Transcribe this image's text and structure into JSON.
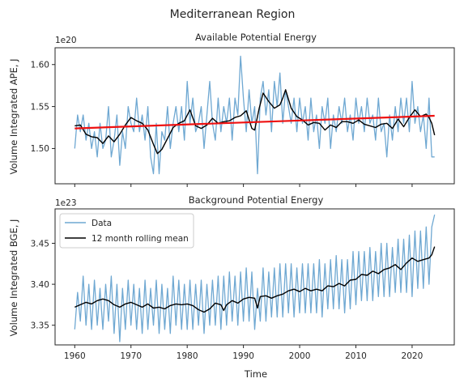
{
  "figure": {
    "suptitle": "Mediterranean Region"
  },
  "chart_data": [
    {
      "type": "line",
      "title": "Available Potential Energy",
      "xlabel": "",
      "ylabel": "Volume Integrated APE, J",
      "offset_label": "1e20",
      "xlim": [
        1956.5,
        2027.5
      ],
      "ylim": [
        1.458,
        1.62
      ],
      "xticks": [
        1960,
        1970,
        1980,
        1990,
        2000,
        2010,
        2020
      ],
      "show_xticklabels": false,
      "yticks": [
        1.5,
        1.55,
        1.6
      ],
      "ytick_labels": [
        "1.50",
        "1.55",
        "1.60"
      ],
      "grid": false,
      "legend": "none",
      "colors": {
        "data": "#6fa8d2",
        "rolling": "#000000",
        "trend": "#ee1111"
      },
      "series": [
        {
          "kind": "monthly",
          "x": [
            1960.0,
            1960.5,
            1961.0,
            1961.5,
            1962.0,
            1962.5,
            1963.0,
            1963.5,
            1964.0,
            1964.5,
            1965.0,
            1965.5,
            1966.0,
            1966.5,
            1967.0,
            1967.5,
            1968.0,
            1968.5,
            1969.0,
            1969.5,
            1970.0,
            1970.5,
            1971.0,
            1971.5,
            1972.0,
            1972.5,
            1973.0,
            1973.5,
            1974.0,
            1974.5,
            1975.0,
            1975.5,
            1976.0,
            1976.5,
            1977.0,
            1977.5,
            1978.0,
            1978.5,
            1979.0,
            1979.5,
            1980.0,
            1980.5,
            1981.0,
            1981.5,
            1982.0,
            1982.5,
            1983.0,
            1983.5,
            1984.0,
            1984.5,
            1985.0,
            1985.5,
            1986.0,
            1986.5,
            1987.0,
            1987.5,
            1988.0,
            1988.5,
            1989.0,
            1989.5,
            1990.0,
            1990.5,
            1991.0,
            1991.5,
            1992.0,
            1992.5,
            1993.0,
            1993.5,
            1994.0,
            1994.5,
            1995.0,
            1995.5,
            1996.0,
            1996.5,
            1997.0,
            1997.5,
            1998.0,
            1998.5,
            1999.0,
            1999.5,
            2000.0,
            2000.5,
            2001.0,
            2001.5,
            2002.0,
            2002.5,
            2003.0,
            2003.5,
            2004.0,
            2004.5,
            2005.0,
            2005.5,
            2006.0,
            2006.5,
            2007.0,
            2007.5,
            2008.0,
            2008.5,
            2009.0,
            2009.5,
            2010.0,
            2010.5,
            2011.0,
            2011.5,
            2012.0,
            2012.5,
            2013.0,
            2013.5,
            2014.0,
            2014.5,
            2015.0,
            2015.5,
            2016.0,
            2016.5,
            2017.0,
            2017.5,
            2018.0,
            2018.5,
            2019.0,
            2019.5,
            2020.0,
            2020.5,
            2021.0,
            2021.5,
            2022.0,
            2022.5,
            2023.0,
            2023.5,
            2024.0
          ],
          "values": [
            1.5,
            1.54,
            1.52,
            1.54,
            1.51,
            1.53,
            1.5,
            1.52,
            1.49,
            1.53,
            1.5,
            1.51,
            1.55,
            1.49,
            1.51,
            1.54,
            1.48,
            1.52,
            1.5,
            1.55,
            1.53,
            1.52,
            1.56,
            1.52,
            1.54,
            1.51,
            1.55,
            1.49,
            1.47,
            1.53,
            1.47,
            1.52,
            1.51,
            1.55,
            1.5,
            1.53,
            1.55,
            1.52,
            1.55,
            1.51,
            1.58,
            1.53,
            1.56,
            1.52,
            1.53,
            1.55,
            1.5,
            1.54,
            1.58,
            1.53,
            1.51,
            1.56,
            1.52,
            1.55,
            1.53,
            1.56,
            1.51,
            1.56,
            1.54,
            1.61,
            1.56,
            1.52,
            1.57,
            1.53,
            1.55,
            1.47,
            1.56,
            1.58,
            1.54,
            1.57,
            1.52,
            1.58,
            1.55,
            1.59,
            1.53,
            1.57,
            1.55,
            1.53,
            1.56,
            1.52,
            1.56,
            1.53,
            1.55,
            1.51,
            1.56,
            1.52,
            1.54,
            1.5,
            1.55,
            1.53,
            1.56,
            1.5,
            1.54,
            1.52,
            1.55,
            1.53,
            1.56,
            1.52,
            1.54,
            1.51,
            1.56,
            1.53,
            1.55,
            1.52,
            1.56,
            1.53,
            1.54,
            1.51,
            1.56,
            1.52,
            1.53,
            1.49,
            1.54,
            1.51,
            1.55,
            1.52,
            1.56,
            1.53,
            1.56,
            1.52,
            1.58,
            1.53,
            1.55,
            1.52,
            1.54,
            1.5,
            1.56,
            1.49,
            1.49
          ]
        },
        {
          "kind": "rolling",
          "x": [
            1960.0,
            1961.0,
            1962.0,
            1963.0,
            1964.0,
            1965.0,
            1966.0,
            1967.0,
            1968.0,
            1969.0,
            1970.0,
            1971.0,
            1972.0,
            1973.0,
            1974.0,
            1974.7,
            1975.5,
            1976.5,
            1977.5,
            1978.5,
            1979.5,
            1980.5,
            1981.5,
            1982.5,
            1983.5,
            1984.5,
            1985.5,
            1986.5,
            1987.5,
            1988.5,
            1989.5,
            1990.5,
            1991.5,
            1992.0,
            1992.8,
            1993.5,
            1994.5,
            1995.5,
            1996.5,
            1997.0,
            1997.5,
            1998.5,
            1999.5,
            2000.5,
            2001.5,
            2002.5,
            2003.5,
            2004.5,
            2005.5,
            2006.5,
            2007.5,
            2008.5,
            2009.5,
            2010.5,
            2011.5,
            2012.5,
            2013.5,
            2014.5,
            2015.5,
            2016.5,
            2017.5,
            2018.5,
            2019.5,
            2020.5,
            2021.5,
            2022.5,
            2023.0,
            2023.5,
            2024.0
          ],
          "values": [
            1.527,
            1.528,
            1.517,
            1.514,
            1.513,
            1.506,
            1.515,
            1.508,
            1.517,
            1.528,
            1.537,
            1.533,
            1.53,
            1.522,
            1.505,
            1.494,
            1.499,
            1.512,
            1.525,
            1.53,
            1.533,
            1.546,
            1.527,
            1.524,
            1.528,
            1.536,
            1.53,
            1.532,
            1.533,
            1.537,
            1.539,
            1.545,
            1.524,
            1.522,
            1.548,
            1.566,
            1.556,
            1.548,
            1.552,
            1.56,
            1.57,
            1.548,
            1.538,
            1.534,
            1.528,
            1.531,
            1.53,
            1.522,
            1.528,
            1.525,
            1.532,
            1.532,
            1.53,
            1.534,
            1.529,
            1.527,
            1.525,
            1.529,
            1.53,
            1.524,
            1.535,
            1.526,
            1.537,
            1.546,
            1.538,
            1.541,
            1.537,
            1.53,
            1.516
          ]
        },
        {
          "kind": "trend",
          "x": [
            1960.0,
            2024.0
          ],
          "values": [
            1.524,
            1.539
          ]
        }
      ]
    },
    {
      "type": "line",
      "title": "Background Potential Energy",
      "xlabel": "Time",
      "ylabel": "Volume Integrated BGE, J",
      "offset_label": "1e23",
      "xlim": [
        1956.5,
        2027.5
      ],
      "ylim": [
        3.326,
        3.492
      ],
      "xticks": [
        1960,
        1970,
        1980,
        1990,
        2000,
        2010,
        2020
      ],
      "xtick_labels": [
        "1960",
        "1970",
        "1980",
        "1990",
        "2000",
        "2010",
        "2020"
      ],
      "show_xticklabels": true,
      "yticks": [
        3.35,
        3.4,
        3.45
      ],
      "ytick_labels": [
        "3.35",
        "3.40",
        "3.45"
      ],
      "grid": false,
      "legend": "top-left",
      "legend_entries": [
        "Data",
        "12 month rolling mean"
      ],
      "colors": {
        "data": "#6fa8d2",
        "rolling": "#000000"
      },
      "series": [
        {
          "kind": "monthly",
          "name": "Data",
          "x": [
            1960.0,
            1960.5,
            1961.0,
            1961.5,
            1962.0,
            1962.5,
            1963.0,
            1963.5,
            1964.0,
            1964.5,
            1965.0,
            1965.5,
            1966.0,
            1966.5,
            1967.0,
            1967.5,
            1968.0,
            1968.5,
            1969.0,
            1969.5,
            1970.0,
            1970.5,
            1971.0,
            1971.5,
            1972.0,
            1972.5,
            1973.0,
            1973.5,
            1974.0,
            1974.5,
            1975.0,
            1975.5,
            1976.0,
            1976.5,
            1977.0,
            1977.5,
            1978.0,
            1978.5,
            1979.0,
            1979.5,
            1980.0,
            1980.5,
            1981.0,
            1981.5,
            1982.0,
            1982.5,
            1983.0,
            1983.5,
            1984.0,
            1984.5,
            1985.0,
            1985.5,
            1986.0,
            1986.5,
            1987.0,
            1987.5,
            1988.0,
            1988.5,
            1989.0,
            1989.5,
            1990.0,
            1990.5,
            1991.0,
            1991.5,
            1992.0,
            1992.5,
            1993.0,
            1993.5,
            1994.0,
            1994.5,
            1995.0,
            1995.5,
            1996.0,
            1996.5,
            1997.0,
            1997.5,
            1998.0,
            1998.5,
            1999.0,
            1999.5,
            2000.0,
            2000.5,
            2001.0,
            2001.5,
            2002.0,
            2002.5,
            2003.0,
            2003.5,
            2004.0,
            2004.5,
            2005.0,
            2005.5,
            2006.0,
            2006.5,
            2007.0,
            2007.5,
            2008.0,
            2008.5,
            2009.0,
            2009.5,
            2010.0,
            2010.5,
            2011.0,
            2011.5,
            2012.0,
            2012.5,
            2013.0,
            2013.5,
            2014.0,
            2014.5,
            2015.0,
            2015.5,
            2016.0,
            2016.5,
            2017.0,
            2017.5,
            2018.0,
            2018.5,
            2019.0,
            2019.5,
            2020.0,
            2020.5,
            2021.0,
            2021.5,
            2022.0,
            2022.5,
            2023.0,
            2023.5,
            2024.0
          ],
          "values": [
            3.345,
            3.39,
            3.355,
            3.41,
            3.35,
            3.4,
            3.345,
            3.405,
            3.35,
            3.395,
            3.345,
            3.4,
            3.355,
            3.41,
            3.34,
            3.4,
            3.33,
            3.395,
            3.345,
            3.405,
            3.35,
            3.4,
            3.345,
            3.395,
            3.34,
            3.405,
            3.345,
            3.395,
            3.35,
            3.405,
            3.34,
            3.4,
            3.345,
            3.395,
            3.34,
            3.41,
            3.35,
            3.405,
            3.345,
            3.4,
            3.345,
            3.405,
            3.345,
            3.4,
            3.35,
            3.405,
            3.34,
            3.4,
            3.35,
            3.405,
            3.35,
            3.41,
            3.345,
            3.41,
            3.35,
            3.415,
            3.355,
            3.41,
            3.35,
            3.415,
            3.355,
            3.42,
            3.355,
            3.415,
            3.345,
            3.395,
            3.355,
            3.42,
            3.355,
            3.415,
            3.36,
            3.42,
            3.36,
            3.425,
            3.36,
            3.425,
            3.365,
            3.425,
            3.36,
            3.42,
            3.365,
            3.425,
            3.365,
            3.425,
            3.365,
            3.425,
            3.365,
            3.43,
            3.36,
            3.425,
            3.37,
            3.43,
            3.37,
            3.435,
            3.37,
            3.43,
            3.365,
            3.43,
            3.37,
            3.44,
            3.375,
            3.44,
            3.38,
            3.44,
            3.38,
            3.445,
            3.38,
            3.44,
            3.385,
            3.45,
            3.385,
            3.45,
            3.385,
            3.445,
            3.39,
            3.455,
            3.39,
            3.455,
            3.39,
            3.46,
            3.385,
            3.465,
            3.395,
            3.465,
            3.395,
            3.47,
            3.4,
            3.47,
            3.485
          ]
        },
        {
          "kind": "rolling",
          "name": "12 month rolling mean",
          "x": [
            1960.0,
            1961.0,
            1962.0,
            1963.0,
            1964.0,
            1965.0,
            1966.0,
            1967.0,
            1968.0,
            1969.0,
            1970.0,
            1971.0,
            1972.0,
            1973.0,
            1974.0,
            1975.0,
            1976.0,
            1977.0,
            1978.0,
            1979.0,
            1980.0,
            1981.0,
            1982.0,
            1983.0,
            1984.0,
            1985.0,
            1986.0,
            1986.5,
            1987.0,
            1988.0,
            1989.0,
            1990.0,
            1991.0,
            1992.0,
            1992.5,
            1993.0,
            1994.0,
            1995.0,
            1996.0,
            1997.0,
            1998.0,
            1999.0,
            2000.0,
            2001.0,
            2002.0,
            2003.0,
            2004.0,
            2005.0,
            2006.0,
            2007.0,
            2008.0,
            2009.0,
            2010.0,
            2011.0,
            2012.0,
            2013.0,
            2014.0,
            2015.0,
            2016.0,
            2017.0,
            2018.0,
            2019.0,
            2020.0,
            2021.0,
            2022.0,
            2023.0,
            2023.5,
            2024.0
          ],
          "values": [
            3.372,
            3.375,
            3.378,
            3.376,
            3.38,
            3.382,
            3.38,
            3.375,
            3.372,
            3.376,
            3.378,
            3.375,
            3.372,
            3.376,
            3.371,
            3.372,
            3.37,
            3.374,
            3.376,
            3.375,
            3.376,
            3.374,
            3.369,
            3.366,
            3.37,
            3.377,
            3.375,
            3.368,
            3.375,
            3.38,
            3.377,
            3.382,
            3.384,
            3.383,
            3.371,
            3.385,
            3.386,
            3.383,
            3.386,
            3.388,
            3.392,
            3.394,
            3.391,
            3.395,
            3.392,
            3.394,
            3.392,
            3.398,
            3.397,
            3.401,
            3.398,
            3.405,
            3.406,
            3.412,
            3.411,
            3.416,
            3.413,
            3.418,
            3.42,
            3.424,
            3.418,
            3.426,
            3.432,
            3.428,
            3.43,
            3.432,
            3.436,
            3.446
          ]
        }
      ]
    }
  ]
}
